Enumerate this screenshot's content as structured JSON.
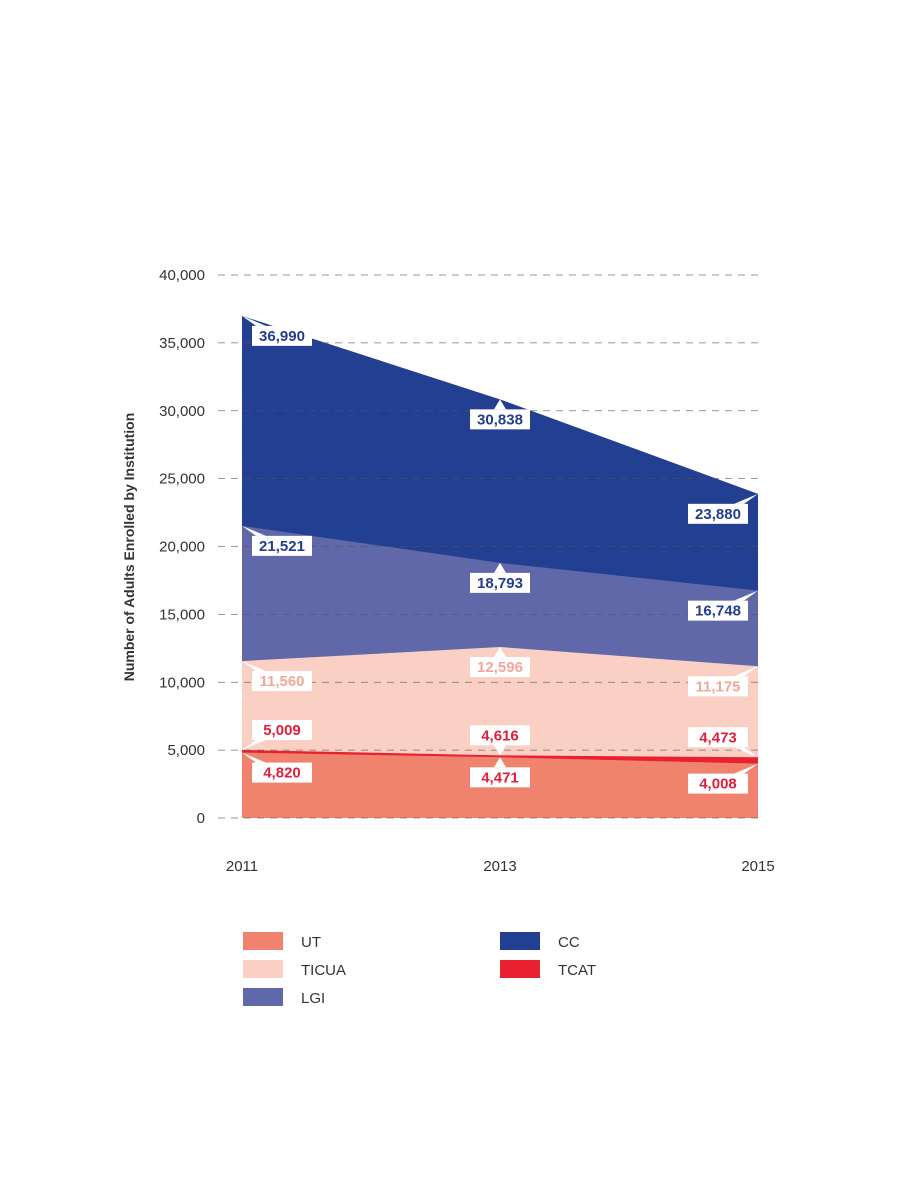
{
  "chart_data": {
    "type": "area",
    "stacked": true,
    "x": [
      "2011",
      "2013",
      "2015"
    ],
    "ylabel": "Number of Adults Enrolled by Institution",
    "ylim": [
      0,
      40000
    ],
    "yticks": [
      "0",
      "5,000",
      "10,000",
      "15,000",
      "20,000",
      "25,000",
      "30,000",
      "35,000",
      "40,000"
    ],
    "grid": true,
    "legend_position": "bottom",
    "series": [
      {
        "name": "UT",
        "color": "#F0836D",
        "cumulative": [
          4820,
          4471,
          4008
        ],
        "labels": [
          "4,820",
          "4,471",
          "4,008"
        ],
        "label_color": "#E0203A"
      },
      {
        "name": "TCAT",
        "color": "#E8202F",
        "cumulative": [
          5009,
          4616,
          4473
        ],
        "labels": [
          "5,009",
          "4,616",
          "4,473"
        ],
        "label_color": "#E0203A"
      },
      {
        "name": "TICUA",
        "color": "#FAD0C4",
        "cumulative": [
          11560,
          12596,
          11175
        ],
        "labels": [
          "11,560",
          "12,596",
          "11,175"
        ],
        "label_color": "#F2A79A"
      },
      {
        "name": "LGI",
        "color": "#6168A9",
        "cumulative": [
          21521,
          18793,
          16748
        ],
        "labels": [
          "21,521",
          "18,793",
          "16,748"
        ],
        "label_color": "#233E91"
      },
      {
        "name": "CC",
        "color": "#233F92",
        "cumulative": [
          36990,
          30838,
          23880
        ],
        "labels": [
          "36,990",
          "30,838",
          "23,880"
        ],
        "label_color": "#233E91"
      }
    ],
    "legend": [
      {
        "name": "UT",
        "color": "#F0836D"
      },
      {
        "name": "TICUA",
        "color": "#FAD0C4"
      },
      {
        "name": "LGI",
        "color": "#6168A9"
      },
      {
        "name": "CC",
        "color": "#233F92"
      },
      {
        "name": "TCAT",
        "color": "#E8202F"
      }
    ]
  }
}
